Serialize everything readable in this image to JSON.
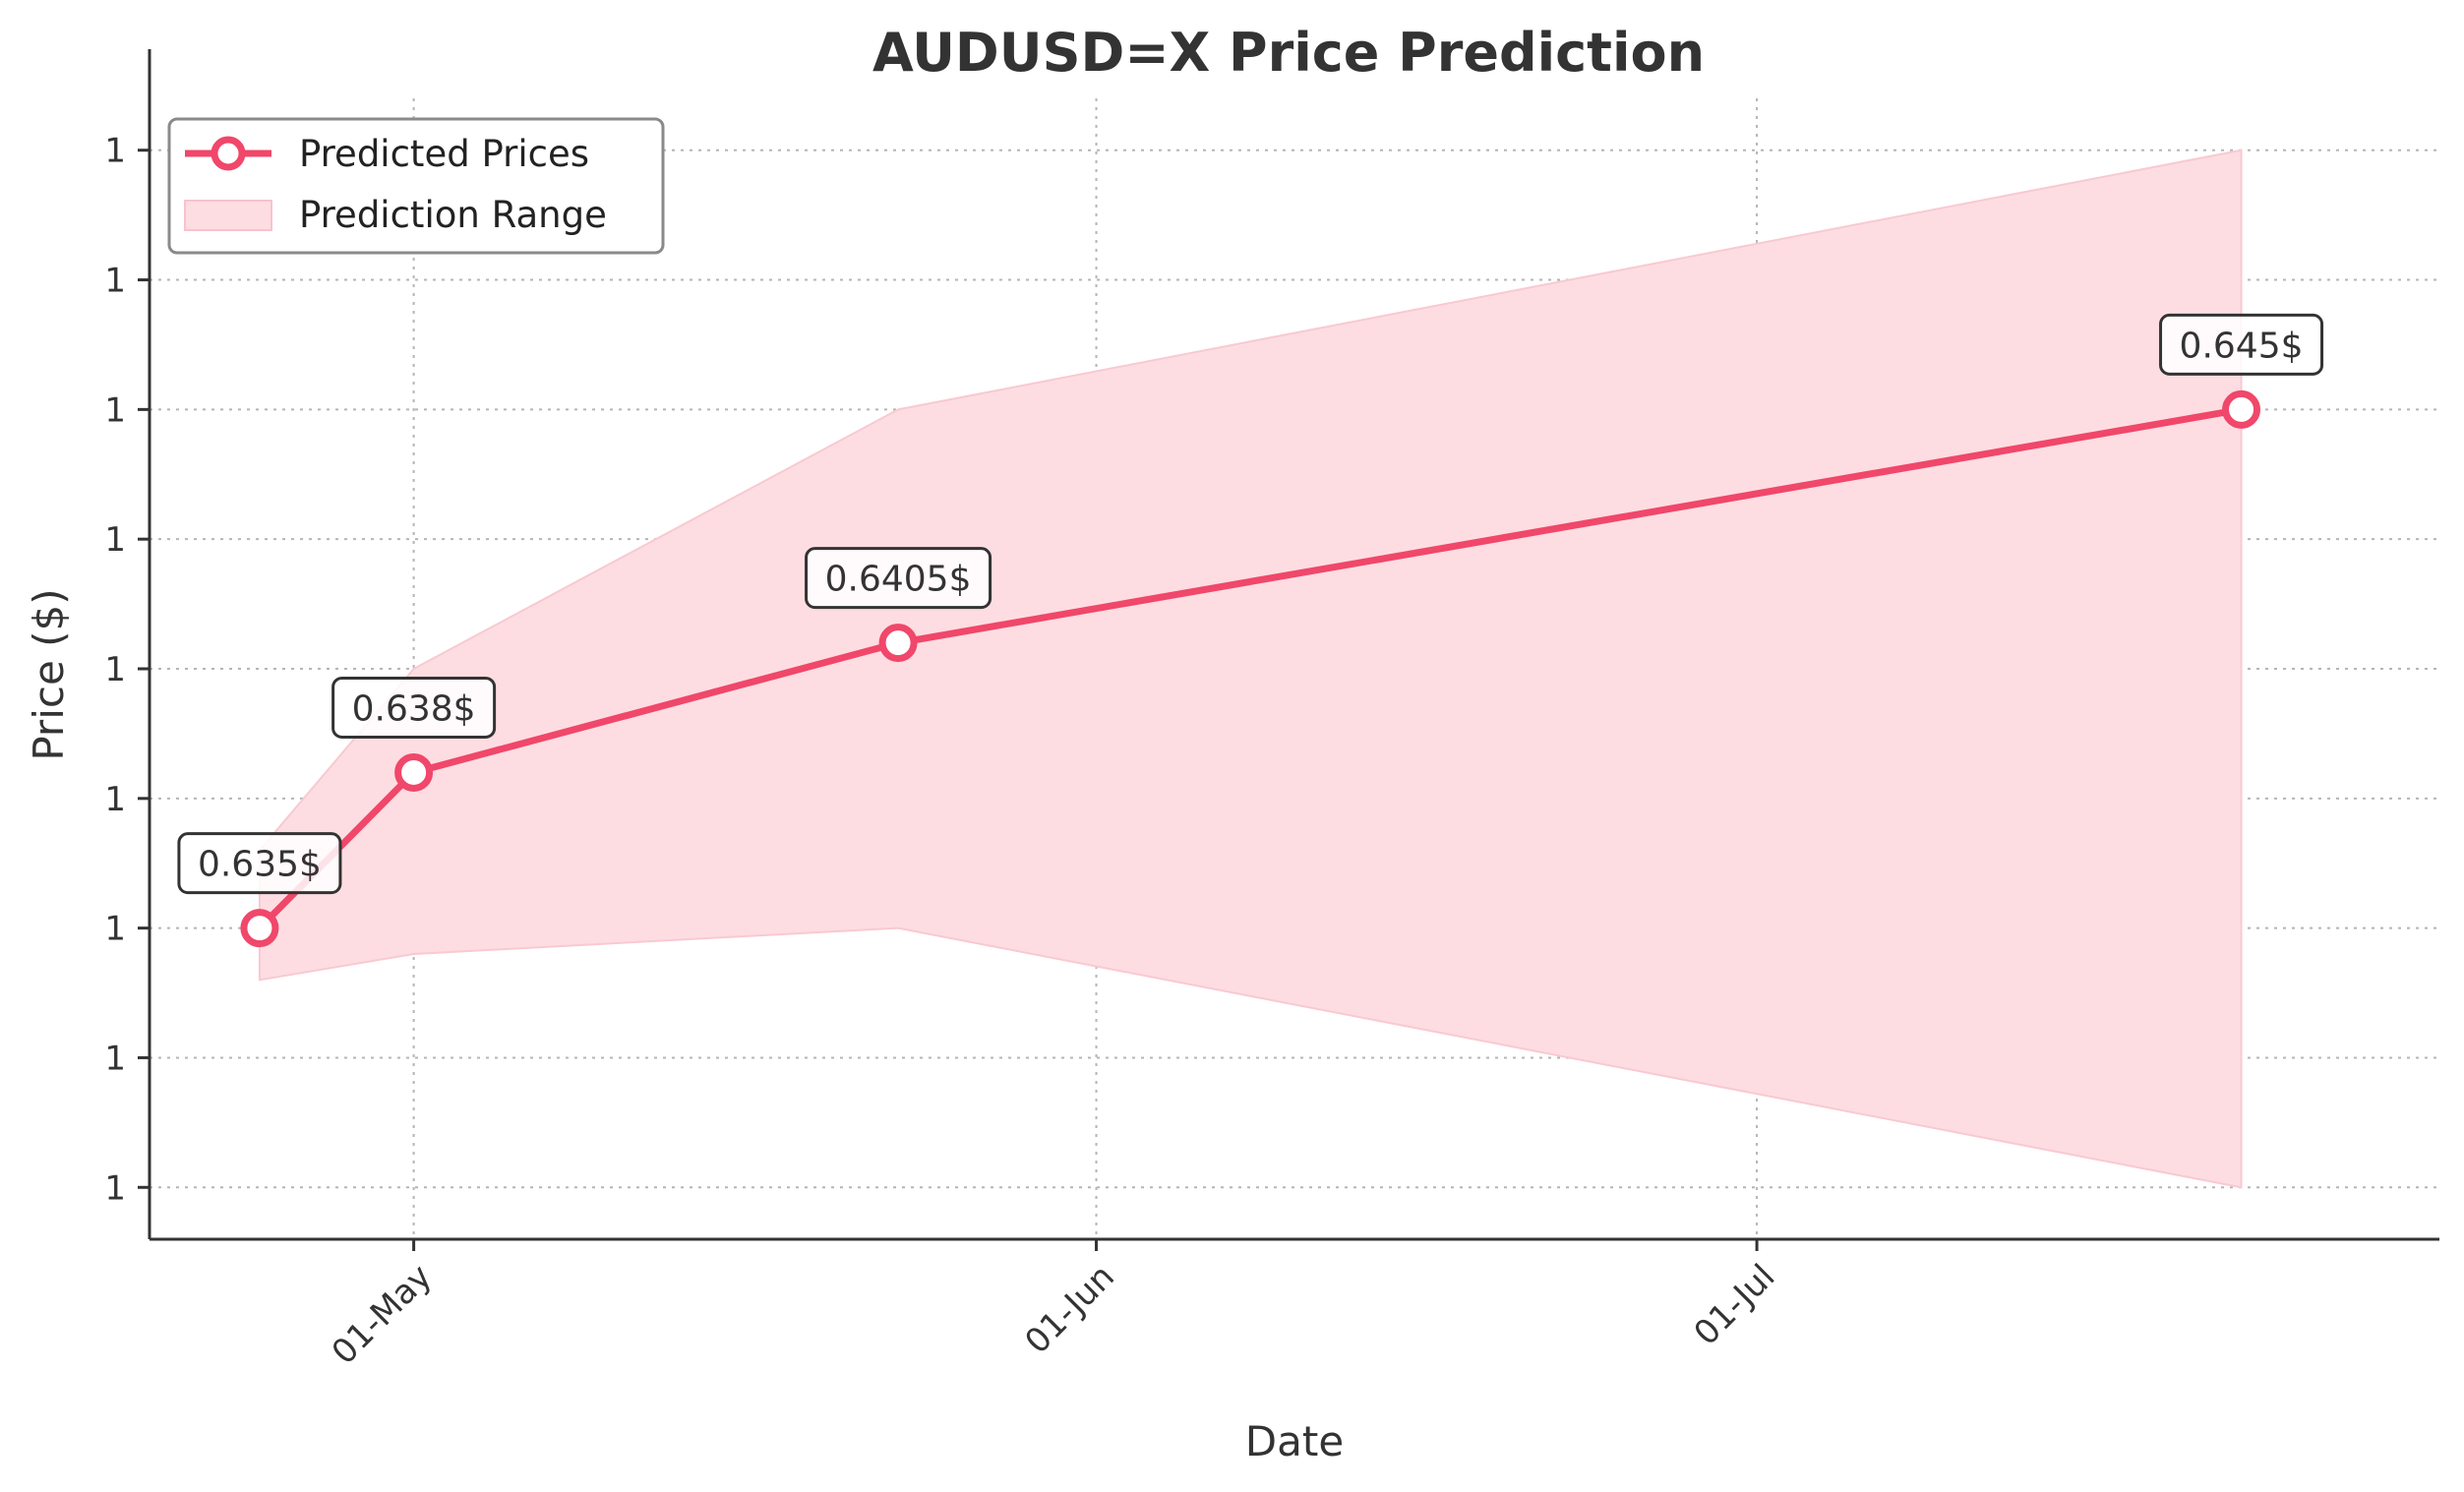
{
  "chart_data": {
    "type": "line",
    "title": "AUDUSD=X Price Prediction",
    "xlabel": "Date",
    "ylabel": "Price ($)",
    "x_tick_labels": [
      "01-May",
      "01-Jun",
      "01-Jul"
    ],
    "y_tick_labels": [
      "1",
      "1",
      "1",
      "1",
      "1",
      "1",
      "1",
      "1",
      "1"
    ],
    "grid": true,
    "legend_placement": "top-left",
    "series": [
      {
        "name": "Predicted Prices",
        "x": [
          "2024-04-24",
          "2024-05-01",
          "2024-05-23",
          "2024-07-23"
        ],
        "values": [
          0.635,
          0.638,
          0.6405,
          0.645
        ],
        "labels": [
          "0.635$",
          "0.638$",
          "0.6405$",
          "0.645$"
        ],
        "color": "#f0476a"
      },
      {
        "name": "Prediction Range",
        "x": [
          "2024-04-24",
          "2024-05-01",
          "2024-05-23",
          "2024-07-23"
        ],
        "lower": [
          0.634,
          0.6345,
          0.635,
          0.63
        ],
        "upper": [
          0.6365,
          0.64,
          0.645,
          0.65
        ],
        "color": "#fddde2"
      }
    ],
    "xlim": [
      "2024-04-19",
      "2024-08-01"
    ],
    "ylim": [
      0.629,
      0.651
    ]
  }
}
